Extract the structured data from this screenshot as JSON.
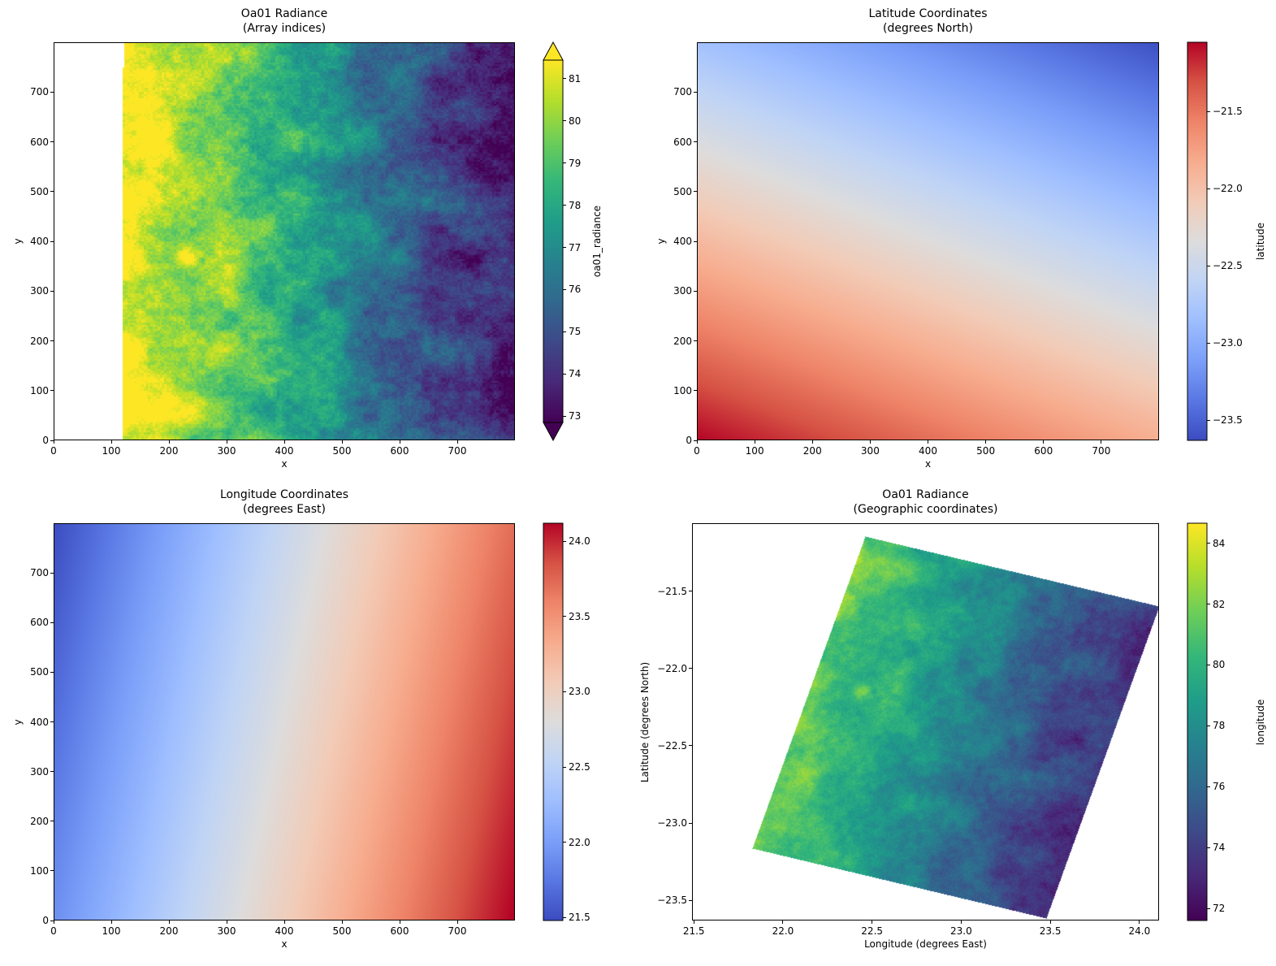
{
  "chart_data": [
    {
      "type": "heatmap",
      "title": "Oa01 Radiance",
      "subtitle": "(Array indices)",
      "xlabel": "x",
      "ylabel": "y",
      "xlim": [
        0,
        800
      ],
      "ylim": [
        0,
        800
      ],
      "x_ticks": [
        "0",
        "100",
        "200",
        "300",
        "400",
        "500",
        "600",
        "700"
      ],
      "y_ticks": [
        "0",
        "100",
        "200",
        "300",
        "400",
        "500",
        "600",
        "700"
      ],
      "colormap": "viridis",
      "colorbar": {
        "label": "oa01_radiance",
        "range": [
          72.85,
          81.44
        ],
        "extend": "both",
        "ticks": [
          "73",
          "74",
          "75",
          "76",
          "77",
          "78",
          "79",
          "80",
          "81"
        ]
      },
      "values_summary": {
        "no_data_x_below": 120,
        "west_edge_value": 81,
        "east_edge_value": 73,
        "bright_spot": {
          "x": 230,
          "y": 365
        }
      }
    },
    {
      "type": "heatmap",
      "title": "Latitude Coordinates",
      "subtitle": "(degrees North)",
      "xlabel": "x",
      "ylabel": "y",
      "xlim": [
        0,
        800
      ],
      "ylim": [
        0,
        800
      ],
      "x_ticks": [
        "0",
        "100",
        "200",
        "300",
        "400",
        "500",
        "600",
        "700"
      ],
      "y_ticks": [
        "0",
        "100",
        "200",
        "300",
        "400",
        "500",
        "600",
        "700"
      ],
      "colormap": "coolwarm",
      "colorbar": {
        "label": "latitude",
        "range": [
          -23.63,
          -21.05
        ],
        "ticks": [
          "−21.5",
          "−22.0",
          "−22.5",
          "−23.0",
          "−23.5"
        ]
      },
      "corner_values": {
        "bottom_left": -21.05,
        "bottom_right": -21.85,
        "top_left": -22.81,
        "top_right": -23.61
      }
    },
    {
      "type": "heatmap",
      "title": "Longitude Coordinates",
      "subtitle": "(degrees East)",
      "xlabel": "x",
      "ylabel": "y",
      "xlim": [
        0,
        800
      ],
      "ylim": [
        0,
        800
      ],
      "x_ticks": [
        "0",
        "100",
        "200",
        "300",
        "400",
        "500",
        "600",
        "700"
      ],
      "y_ticks": [
        "0",
        "100",
        "200",
        "300",
        "400",
        "500",
        "600",
        "700"
      ],
      "colormap": "coolwarm",
      "colorbar": {
        "label": "longitude",
        "range": [
          21.48,
          24.12
        ],
        "ticks": [
          "21.5",
          "22.0",
          "22.5",
          "23.0",
          "23.5",
          "24.0"
        ]
      },
      "corner_values": {
        "top_left": 21.48,
        "bottom_left": 21.9,
        "top_right": 23.72,
        "bottom_right": 24.12
      }
    },
    {
      "type": "heatmap",
      "title": "Oa01 Radiance",
      "subtitle": "(Geographic coordinates)",
      "xlabel": "Longitude (degrees East)",
      "ylabel": "Latitude (degrees North)",
      "xlim": [
        21.49,
        24.11
      ],
      "ylim": [
        -23.63,
        -21.06
      ],
      "x_ticks": [
        "21.5",
        "22.0",
        "22.5",
        "23.0",
        "23.5",
        "24.0"
      ],
      "y_ticks": [
        "−21.5",
        "−22.0",
        "−22.5",
        "−23.0",
        "−23.5"
      ],
      "colormap": "viridis",
      "colorbar": {
        "label": "",
        "range": [
          71.6,
          84.66
        ],
        "ticks": [
          "72",
          "74",
          "76",
          "78",
          "80",
          "82",
          "84"
        ]
      },
      "swath_corners": {
        "north": [
          22.46,
          -21.15
        ],
        "east": [
          24.1,
          -21.6
        ],
        "south": [
          23.5,
          -23.63
        ],
        "west": [
          21.82,
          -23.16
        ]
      }
    }
  ]
}
